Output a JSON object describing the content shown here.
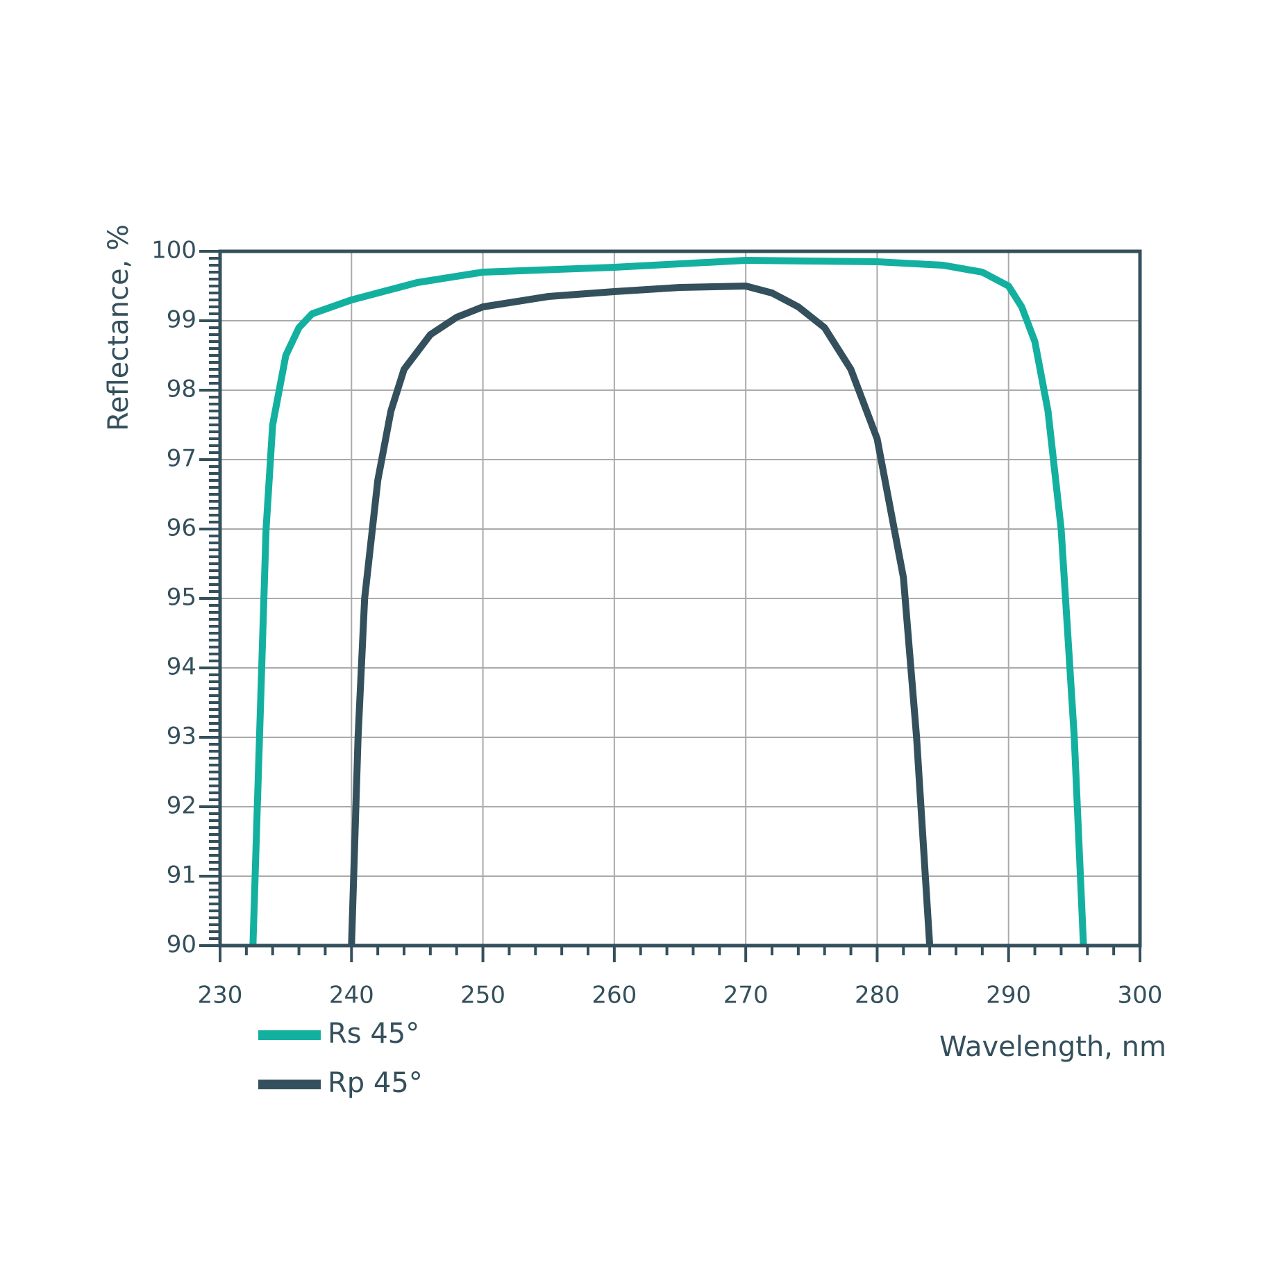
{
  "chart_data": {
    "type": "line",
    "xlabel": "Wavelength, nm",
    "ylabel": "Reflectance, %",
    "xlim": [
      230,
      300
    ],
    "xticks": [
      230,
      240,
      250,
      260,
      270,
      280,
      290,
      300
    ],
    "ylim": [
      90,
      100
    ],
    "yticks": [
      90,
      91,
      92,
      93,
      94,
      95,
      96,
      97,
      98,
      99,
      100
    ],
    "grid": true,
    "legend": "lower left",
    "series": [
      {
        "name": "Rs 45°",
        "color": "#13b0a0",
        "x": [
          232.5,
          233,
          233.5,
          234,
          235,
          236,
          237,
          240,
          245,
          250,
          260,
          270,
          280,
          285,
          288,
          290,
          291,
          292,
          293,
          294,
          295,
          295.7
        ],
        "values": [
          90,
          93,
          96,
          97.5,
          98.5,
          98.9,
          99.1,
          99.3,
          99.55,
          99.7,
          99.77,
          99.87,
          99.85,
          99.8,
          99.7,
          99.5,
          99.2,
          98.7,
          97.7,
          96,
          93,
          90
        ]
      },
      {
        "name": "Rp 45°",
        "color": "#34505c",
        "x": [
          240,
          240.5,
          241,
          242,
          243,
          244,
          246,
          248,
          250,
          255,
          260,
          265,
          270,
          272,
          274,
          276,
          278,
          280,
          282,
          283,
          284
        ],
        "values": [
          90,
          93,
          95,
          96.7,
          97.7,
          98.3,
          98.8,
          99.05,
          99.2,
          99.35,
          99.42,
          99.48,
          99.5,
          99.4,
          99.2,
          98.9,
          98.3,
          97.3,
          95.3,
          93,
          90
        ]
      }
    ]
  }
}
